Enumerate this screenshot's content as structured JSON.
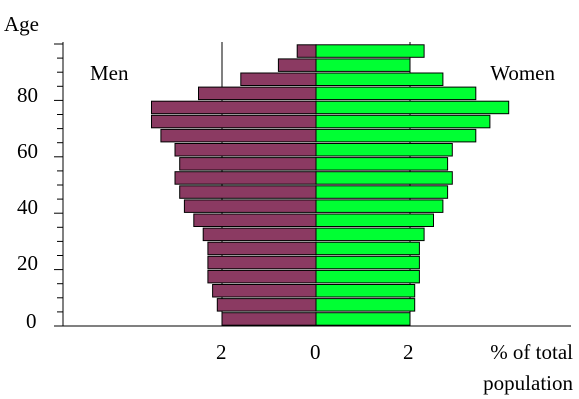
{
  "chart_data": {
    "type": "bar",
    "orientation": "horizontal",
    "subtype": "population-pyramid",
    "ylabel": "Age",
    "xlabel_lines": [
      "% of total",
      "population"
    ],
    "age_ticks": [
      "0",
      "20",
      "40",
      "60",
      "80"
    ],
    "x_ticks": [
      "2",
      "0",
      "2"
    ],
    "x_range_percent": [
      -6.5,
      5.5
    ],
    "age_groups": [
      "0-4",
      "5-9",
      "10-14",
      "15-19",
      "20-24",
      "25-29",
      "30-34",
      "35-39",
      "40-44",
      "45-49",
      "50-54",
      "55-59",
      "60-64",
      "65-69",
      "70-74",
      "75-79",
      "80-84",
      "85-89",
      "90-94",
      "95-99"
    ],
    "series": [
      {
        "name": "Men",
        "color": "#8b3a62",
        "values": [
          2.0,
          2.1,
          2.2,
          2.3,
          2.3,
          2.3,
          2.4,
          2.6,
          2.8,
          2.9,
          3.0,
          2.9,
          3.0,
          3.3,
          3.5,
          3.5,
          2.5,
          1.6,
          0.8,
          0.4
        ]
      },
      {
        "name": "Women",
        "color": "#00ff33",
        "values": [
          2.0,
          2.1,
          2.1,
          2.2,
          2.2,
          2.2,
          2.3,
          2.5,
          2.7,
          2.8,
          2.9,
          2.8,
          2.9,
          3.4,
          3.7,
          4.1,
          3.4,
          2.7,
          2.0,
          2.3
        ]
      }
    ],
    "grid": "vertical lines at ±2%",
    "legend": "inline labels top-left (Men) and top-right (Women)"
  }
}
